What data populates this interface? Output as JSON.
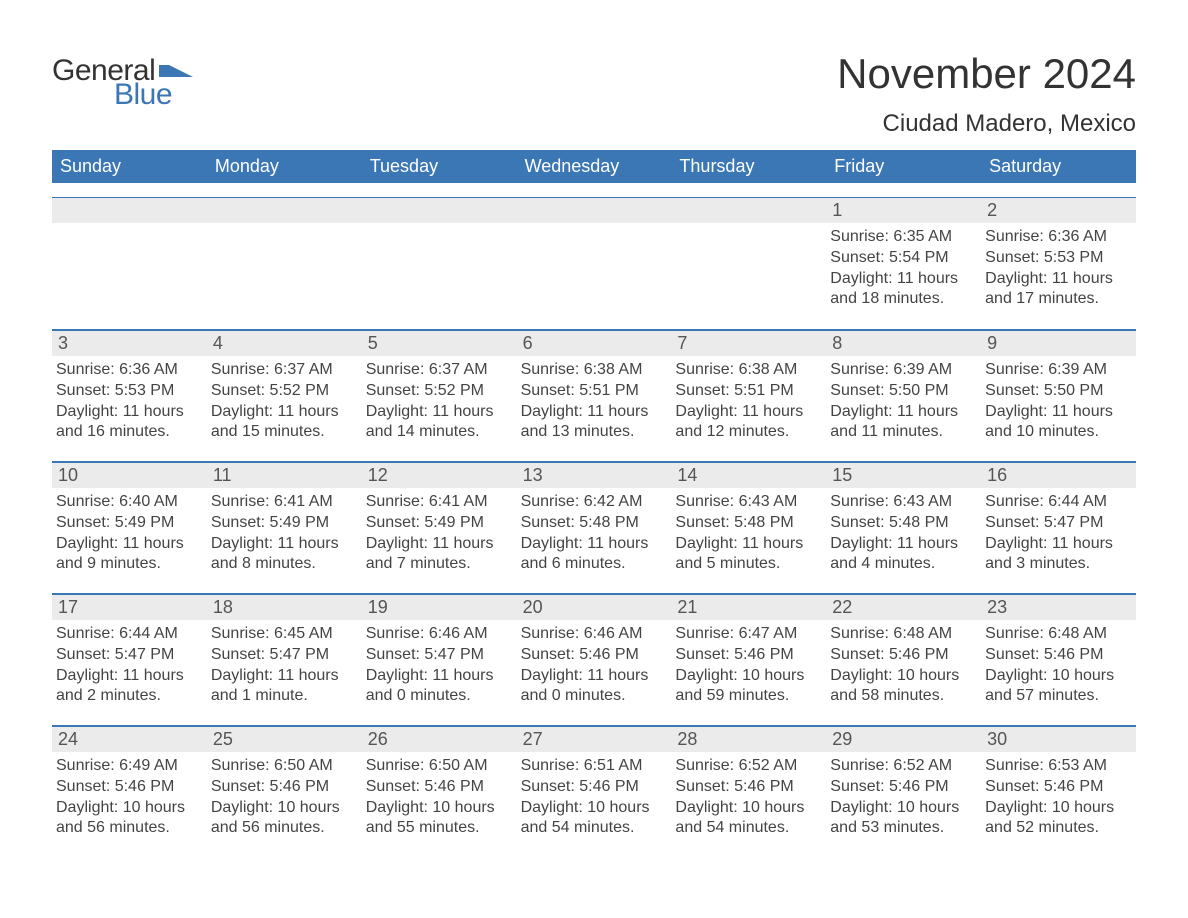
{
  "brand": {
    "text_general": "General",
    "text_blue": "Blue",
    "mark_color": "#3b76b5"
  },
  "header": {
    "month_title": "November 2024",
    "location": "Ciudad Madero, Mexico"
  },
  "colors": {
    "header_bar": "#3b76b5",
    "daynum_bg": "#ebebeb",
    "daynum_border": "#3b76b5",
    "text_primary": "#333333",
    "text_secondary": "#444444",
    "background": "#ffffff"
  },
  "weekdays": [
    "Sunday",
    "Monday",
    "Tuesday",
    "Wednesday",
    "Thursday",
    "Friday",
    "Saturday"
  ],
  "weeks": [
    [
      {
        "empty": true
      },
      {
        "empty": true
      },
      {
        "empty": true
      },
      {
        "empty": true
      },
      {
        "empty": true
      },
      {
        "day": "1",
        "sunrise": "Sunrise: 6:35 AM",
        "sunset": "Sunset: 5:54 PM",
        "daylight": "Daylight: 11 hours and 18 minutes."
      },
      {
        "day": "2",
        "sunrise": "Sunrise: 6:36 AM",
        "sunset": "Sunset: 5:53 PM",
        "daylight": "Daylight: 11 hours and 17 minutes."
      }
    ],
    [
      {
        "day": "3",
        "sunrise": "Sunrise: 6:36 AM",
        "sunset": "Sunset: 5:53 PM",
        "daylight": "Daylight: 11 hours and 16 minutes."
      },
      {
        "day": "4",
        "sunrise": "Sunrise: 6:37 AM",
        "sunset": "Sunset: 5:52 PM",
        "daylight": "Daylight: 11 hours and 15 minutes."
      },
      {
        "day": "5",
        "sunrise": "Sunrise: 6:37 AM",
        "sunset": "Sunset: 5:52 PM",
        "daylight": "Daylight: 11 hours and 14 minutes."
      },
      {
        "day": "6",
        "sunrise": "Sunrise: 6:38 AM",
        "sunset": "Sunset: 5:51 PM",
        "daylight": "Daylight: 11 hours and 13 minutes."
      },
      {
        "day": "7",
        "sunrise": "Sunrise: 6:38 AM",
        "sunset": "Sunset: 5:51 PM",
        "daylight": "Daylight: 11 hours and 12 minutes."
      },
      {
        "day": "8",
        "sunrise": "Sunrise: 6:39 AM",
        "sunset": "Sunset: 5:50 PM",
        "daylight": "Daylight: 11 hours and 11 minutes."
      },
      {
        "day": "9",
        "sunrise": "Sunrise: 6:39 AM",
        "sunset": "Sunset: 5:50 PM",
        "daylight": "Daylight: 11 hours and 10 minutes."
      }
    ],
    [
      {
        "day": "10",
        "sunrise": "Sunrise: 6:40 AM",
        "sunset": "Sunset: 5:49 PM",
        "daylight": "Daylight: 11 hours and 9 minutes."
      },
      {
        "day": "11",
        "sunrise": "Sunrise: 6:41 AM",
        "sunset": "Sunset: 5:49 PM",
        "daylight": "Daylight: 11 hours and 8 minutes."
      },
      {
        "day": "12",
        "sunrise": "Sunrise: 6:41 AM",
        "sunset": "Sunset: 5:49 PM",
        "daylight": "Daylight: 11 hours and 7 minutes."
      },
      {
        "day": "13",
        "sunrise": "Sunrise: 6:42 AM",
        "sunset": "Sunset: 5:48 PM",
        "daylight": "Daylight: 11 hours and 6 minutes."
      },
      {
        "day": "14",
        "sunrise": "Sunrise: 6:43 AM",
        "sunset": "Sunset: 5:48 PM",
        "daylight": "Daylight: 11 hours and 5 minutes."
      },
      {
        "day": "15",
        "sunrise": "Sunrise: 6:43 AM",
        "sunset": "Sunset: 5:48 PM",
        "daylight": "Daylight: 11 hours and 4 minutes."
      },
      {
        "day": "16",
        "sunrise": "Sunrise: 6:44 AM",
        "sunset": "Sunset: 5:47 PM",
        "daylight": "Daylight: 11 hours and 3 minutes."
      }
    ],
    [
      {
        "day": "17",
        "sunrise": "Sunrise: 6:44 AM",
        "sunset": "Sunset: 5:47 PM",
        "daylight": "Daylight: 11 hours and 2 minutes."
      },
      {
        "day": "18",
        "sunrise": "Sunrise: 6:45 AM",
        "sunset": "Sunset: 5:47 PM",
        "daylight": "Daylight: 11 hours and 1 minute."
      },
      {
        "day": "19",
        "sunrise": "Sunrise: 6:46 AM",
        "sunset": "Sunset: 5:47 PM",
        "daylight": "Daylight: 11 hours and 0 minutes."
      },
      {
        "day": "20",
        "sunrise": "Sunrise: 6:46 AM",
        "sunset": "Sunset: 5:46 PM",
        "daylight": "Daylight: 11 hours and 0 minutes."
      },
      {
        "day": "21",
        "sunrise": "Sunrise: 6:47 AM",
        "sunset": "Sunset: 5:46 PM",
        "daylight": "Daylight: 10 hours and 59 minutes."
      },
      {
        "day": "22",
        "sunrise": "Sunrise: 6:48 AM",
        "sunset": "Sunset: 5:46 PM",
        "daylight": "Daylight: 10 hours and 58 minutes."
      },
      {
        "day": "23",
        "sunrise": "Sunrise: 6:48 AM",
        "sunset": "Sunset: 5:46 PM",
        "daylight": "Daylight: 10 hours and 57 minutes."
      }
    ],
    [
      {
        "day": "24",
        "sunrise": "Sunrise: 6:49 AM",
        "sunset": "Sunset: 5:46 PM",
        "daylight": "Daylight: 10 hours and 56 minutes."
      },
      {
        "day": "25",
        "sunrise": "Sunrise: 6:50 AM",
        "sunset": "Sunset: 5:46 PM",
        "daylight": "Daylight: 10 hours and 56 minutes."
      },
      {
        "day": "26",
        "sunrise": "Sunrise: 6:50 AM",
        "sunset": "Sunset: 5:46 PM",
        "daylight": "Daylight: 10 hours and 55 minutes."
      },
      {
        "day": "27",
        "sunrise": "Sunrise: 6:51 AM",
        "sunset": "Sunset: 5:46 PM",
        "daylight": "Daylight: 10 hours and 54 minutes."
      },
      {
        "day": "28",
        "sunrise": "Sunrise: 6:52 AM",
        "sunset": "Sunset: 5:46 PM",
        "daylight": "Daylight: 10 hours and 54 minutes."
      },
      {
        "day": "29",
        "sunrise": "Sunrise: 6:52 AM",
        "sunset": "Sunset: 5:46 PM",
        "daylight": "Daylight: 10 hours and 53 minutes."
      },
      {
        "day": "30",
        "sunrise": "Sunrise: 6:53 AM",
        "sunset": "Sunset: 5:46 PM",
        "daylight": "Daylight: 10 hours and 52 minutes."
      }
    ]
  ]
}
